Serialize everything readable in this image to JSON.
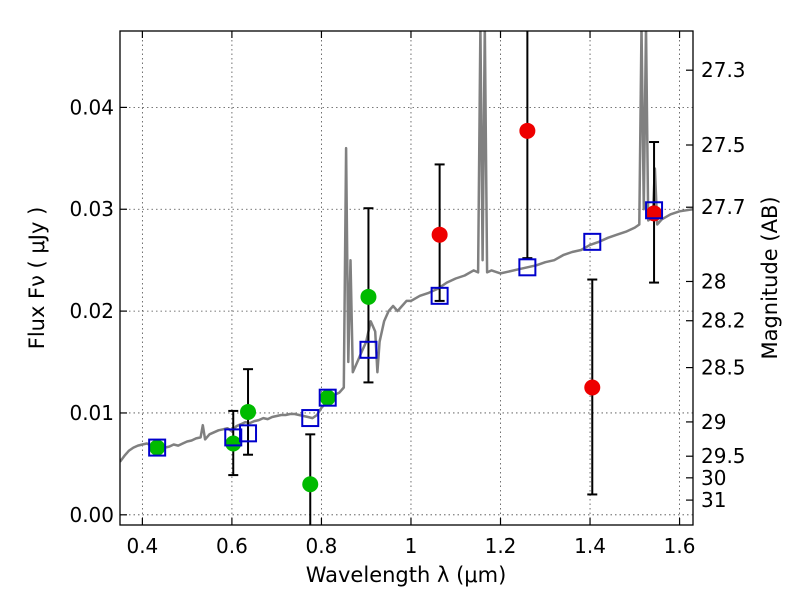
{
  "chart_data": {
    "type": "scatter",
    "xlabel": "Wavelength  λ (μm)",
    "ylabel": "Flux  Fν  ( μJy )",
    "y2label": "Magnitude (AB)",
    "xlim": [
      0.35,
      1.63
    ],
    "ylim": [
      -0.001,
      0.0475
    ],
    "x_ticks": [
      0.4,
      0.6,
      0.8,
      1.0,
      1.2,
      1.4,
      1.6
    ],
    "x_tick_labels": [
      "0.4",
      "0.6",
      "0.8",
      "1",
      "1.2",
      "1.4",
      "1.6"
    ],
    "y_ticks": [
      0.0,
      0.01,
      0.02,
      0.03,
      0.04
    ],
    "y_tick_labels": [
      "0.00",
      "0.01",
      "0.02",
      "0.03",
      "0.04"
    ],
    "y2_ticks": [
      {
        "label": "27.3",
        "mag": 27.3
      },
      {
        "label": "27.5",
        "mag": 27.5
      },
      {
        "label": "27.7",
        "mag": 27.7
      },
      {
        "label": "28",
        "mag": 28.0
      },
      {
        "label": "28.2",
        "mag": 28.2
      },
      {
        "label": "28.5",
        "mag": 28.5
      },
      {
        "label": "29",
        "mag": 29.0
      },
      {
        "label": "29.5",
        "mag": 29.5
      },
      {
        "label": "30",
        "mag": 30.0
      },
      {
        "label": "31",
        "mag": 31.0
      }
    ],
    "grid": true,
    "colors": {
      "model_spectrum": "#808080",
      "green_points": "#00bb00",
      "red_points": "#ee0000",
      "model_photometry": "#0000cc",
      "error_bars": "#000000"
    },
    "model_spectrum": {
      "x": [
        0.35,
        0.36,
        0.37,
        0.38,
        0.39,
        0.4,
        0.41,
        0.42,
        0.43,
        0.44,
        0.45,
        0.46,
        0.47,
        0.48,
        0.49,
        0.5,
        0.51,
        0.52,
        0.53,
        0.535,
        0.54,
        0.55,
        0.56,
        0.57,
        0.58,
        0.59,
        0.6,
        0.61,
        0.62,
        0.63,
        0.64,
        0.65,
        0.66,
        0.67,
        0.68,
        0.69,
        0.7,
        0.71,
        0.72,
        0.73,
        0.74,
        0.75,
        0.76,
        0.77,
        0.78,
        0.79,
        0.8,
        0.81,
        0.82,
        0.83,
        0.84,
        0.85,
        0.855,
        0.86,
        0.865,
        0.87,
        0.88,
        0.89,
        0.9,
        0.91,
        0.92,
        0.925,
        0.93,
        0.94,
        0.95,
        0.96,
        0.97,
        0.98,
        0.99,
        1.0,
        1.02,
        1.04,
        1.06,
        1.08,
        1.1,
        1.12,
        1.14,
        1.15,
        1.155,
        1.16,
        1.165,
        1.17,
        1.18,
        1.2,
        1.22,
        1.24,
        1.26,
        1.28,
        1.3,
        1.32,
        1.34,
        1.36,
        1.38,
        1.4,
        1.42,
        1.44,
        1.46,
        1.48,
        1.5,
        1.51,
        1.515,
        1.52,
        1.525,
        1.53,
        1.54,
        1.545,
        1.55,
        1.56,
        1.58,
        1.6,
        1.63
      ],
      "y": [
        0.0052,
        0.0058,
        0.0063,
        0.0066,
        0.0068,
        0.0069,
        0.007,
        0.0068,
        0.0067,
        0.0068,
        0.0066,
        0.0067,
        0.0069,
        0.0068,
        0.007,
        0.0072,
        0.0073,
        0.0075,
        0.0076,
        0.0088,
        0.0074,
        0.0079,
        0.0081,
        0.0083,
        0.0084,
        0.0085,
        0.0082,
        0.0087,
        0.0089,
        0.0091,
        0.009,
        0.0092,
        0.0093,
        0.0095,
        0.0094,
        0.0096,
        0.0097,
        0.0098,
        0.0098,
        0.0099,
        0.0099,
        0.0098,
        0.0097,
        0.0096,
        0.0095,
        0.0098,
        0.0105,
        0.011,
        0.0115,
        0.0118,
        0.012,
        0.0125,
        0.036,
        0.015,
        0.025,
        0.014,
        0.015,
        0.016,
        0.017,
        0.019,
        0.018,
        0.014,
        0.017,
        0.019,
        0.02,
        0.0205,
        0.02,
        0.0205,
        0.021,
        0.021,
        0.0215,
        0.0218,
        0.0222,
        0.0228,
        0.0232,
        0.0235,
        0.024,
        0.0238,
        0.048,
        0.025,
        0.048,
        0.0238,
        0.024,
        0.0237,
        0.0239,
        0.0241,
        0.0243,
        0.0245,
        0.0248,
        0.025,
        0.0255,
        0.0258,
        0.026,
        0.0265,
        0.0268,
        0.0272,
        0.0275,
        0.0278,
        0.0282,
        0.0285,
        0.048,
        0.03,
        0.048,
        0.0289,
        0.0292,
        0.034,
        0.0285,
        0.029,
        0.0295,
        0.0298,
        0.03
      ]
    },
    "green_points": [
      {
        "x": 0.433,
        "y": 0.0066
      },
      {
        "x": 0.603,
        "y": 0.007,
        "err_low": 0.0039,
        "err_high": 0.0102
      },
      {
        "x": 0.636,
        "y": 0.0101,
        "err_low": 0.0059,
        "err_high": 0.0143
      },
      {
        "x": 0.775,
        "y": 0.003,
        "err_low": -0.0011,
        "err_high": 0.0079
      },
      {
        "x": 0.814,
        "y": 0.0115
      },
      {
        "x": 0.905,
        "y": 0.0214,
        "err_low": 0.013,
        "err_high": 0.0301
      }
    ],
    "red_points": [
      {
        "x": 1.064,
        "y": 0.0275,
        "err_low": 0.021,
        "err_high": 0.0344
      },
      {
        "x": 1.26,
        "y": 0.0377,
        "err_low": 0.0252,
        "err_high": 0.048
      },
      {
        "x": 1.405,
        "y": 0.0125,
        "err_low": 0.002,
        "err_high": 0.0231
      },
      {
        "x": 1.543,
        "y": 0.0296,
        "err_low": 0.0228,
        "err_high": 0.0366
      }
    ],
    "model_photometry": [
      {
        "x": 0.433,
        "y": 0.0066
      },
      {
        "x": 0.603,
        "y": 0.0076
      },
      {
        "x": 0.636,
        "y": 0.008
      },
      {
        "x": 0.775,
        "y": 0.0095
      },
      {
        "x": 0.814,
        "y": 0.0115
      },
      {
        "x": 0.905,
        "y": 0.0162
      },
      {
        "x": 1.064,
        "y": 0.0215
      },
      {
        "x": 1.26,
        "y": 0.0243
      },
      {
        "x": 1.405,
        "y": 0.0268
      },
      {
        "x": 1.543,
        "y": 0.0299
      }
    ]
  }
}
